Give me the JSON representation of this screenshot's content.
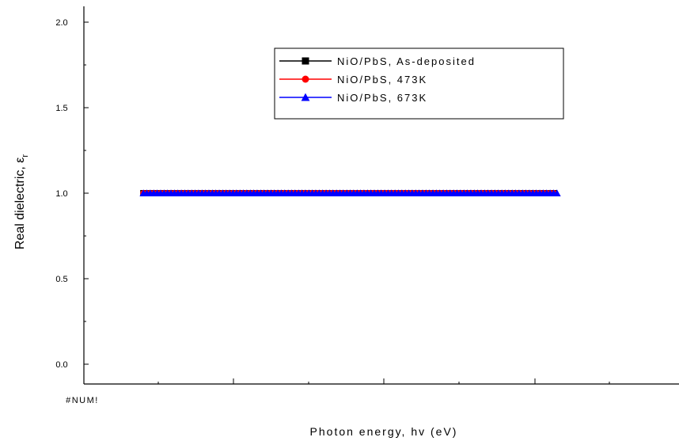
{
  "chart_data": {
    "type": "line",
    "title": "",
    "xlabel": "Photon energy, hv (eV)",
    "ylabel_text": "Real dielectric, ε",
    "ylabel_sub": "r",
    "x_tick_labels": [
      "#NUM!"
    ],
    "y_ticks": [
      "0.0",
      "0.5",
      "1.0",
      "1.5",
      "2.0"
    ],
    "ylim": [
      0,
      2.0
    ],
    "legend_position": "top-center",
    "series": [
      {
        "name": "NiO/PbS, As-deposited",
        "color": "#000000",
        "marker": "square",
        "value": 1.0,
        "x_start": 0.1,
        "x_end": 0.79
      },
      {
        "name": "NiO/PbS, 473K",
        "color": "#ff0000",
        "marker": "circle",
        "value": 1.0,
        "x_start": 0.1,
        "x_end": 0.79
      },
      {
        "name": "NiO/PbS, 673K",
        "color": "#0000ff",
        "marker": "triangle",
        "value": 1.0,
        "x_start": 0.1,
        "x_end": 0.795
      }
    ]
  }
}
